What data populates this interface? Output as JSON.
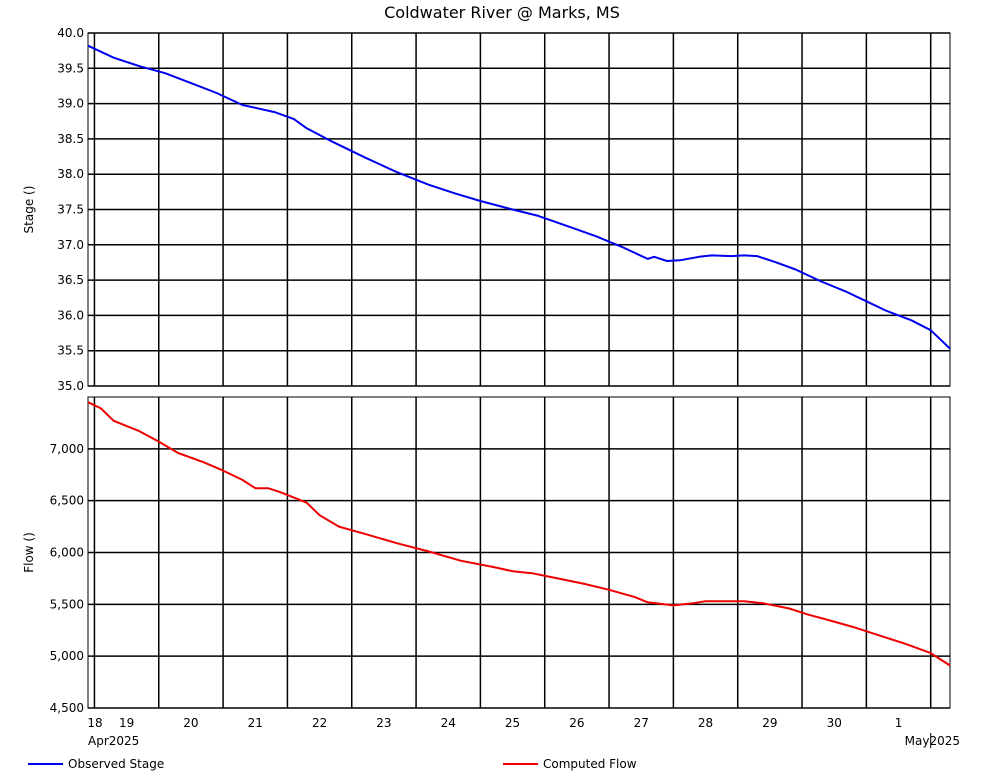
{
  "chart_data": {
    "title": "Coldwater River @ Marks, MS",
    "x_day_labels": [
      "18",
      "19",
      "20",
      "21",
      "22",
      "23",
      "24",
      "25",
      "26",
      "27",
      "28",
      "29",
      "30",
      "1"
    ],
    "x_month_labels": [
      "Apr2025",
      "May2025"
    ],
    "x_range_days": [
      -0.1,
      13.3
    ],
    "panels": [
      {
        "name": "stage",
        "type": "line",
        "ylabel": "Stage ()",
        "ylim": [
          35.0,
          40.0
        ],
        "yticks": [
          35.0,
          35.5,
          36.0,
          36.5,
          37.0,
          37.5,
          38.0,
          38.5,
          39.0,
          39.5,
          40.0
        ],
        "ytick_labels": [
          "35.0",
          "35.5",
          "36.0",
          "36.5",
          "37.0",
          "37.5",
          "38.0",
          "38.5",
          "39.0",
          "39.5",
          "40.0"
        ],
        "series": [
          {
            "name": "Observed Stage",
            "color": "#0000ee",
            "points": [
              [
                -0.1,
                39.82
              ],
              [
                0.3,
                39.65
              ],
              [
                0.7,
                39.53
              ],
              [
                1.1,
                39.43
              ],
              [
                1.5,
                39.29
              ],
              [
                1.9,
                39.15
              ],
              [
                2.3,
                38.98
              ],
              [
                2.5,
                38.94
              ],
              [
                2.8,
                38.88
              ],
              [
                3.1,
                38.78
              ],
              [
                3.3,
                38.65
              ],
              [
                3.7,
                38.46
              ],
              [
                4.2,
                38.24
              ],
              [
                4.7,
                38.03
              ],
              [
                5.2,
                37.85
              ],
              [
                5.6,
                37.73
              ],
              [
                6.0,
                37.62
              ],
              [
                6.5,
                37.5
              ],
              [
                6.9,
                37.41
              ],
              [
                7.4,
                37.25
              ],
              [
                7.8,
                37.12
              ],
              [
                8.2,
                36.97
              ],
              [
                8.6,
                36.8
              ],
              [
                8.7,
                36.83
              ],
              [
                8.9,
                36.77
              ],
              [
                9.1,
                36.78
              ],
              [
                9.4,
                36.83
              ],
              [
                9.6,
                36.85
              ],
              [
                9.9,
                36.84
              ],
              [
                10.1,
                36.85
              ],
              [
                10.3,
                36.84
              ],
              [
                10.6,
                36.75
              ],
              [
                10.9,
                36.65
              ],
              [
                11.3,
                36.48
              ],
              [
                11.7,
                36.33
              ],
              [
                12.0,
                36.2
              ],
              [
                12.3,
                36.07
              ],
              [
                12.7,
                35.93
              ],
              [
                13.0,
                35.79
              ],
              [
                13.3,
                35.53
              ]
            ]
          }
        ]
      },
      {
        "name": "flow",
        "type": "line",
        "ylabel": "Flow ()",
        "ylim": [
          4500,
          7500
        ],
        "yticks": [
          4500,
          5000,
          5500,
          6000,
          6500,
          7000
        ],
        "ytick_labels": [
          "4,500",
          "5,000",
          "5,500",
          "6,000",
          "6,500",
          "7,000"
        ],
        "series": [
          {
            "name": "Computed Flow",
            "color": "#ee0000",
            "points": [
              [
                -0.1,
                7450
              ],
              [
                0.1,
                7390
              ],
              [
                0.3,
                7270
              ],
              [
                0.7,
                7170
              ],
              [
                1.0,
                7070
              ],
              [
                1.3,
                6960
              ],
              [
                1.7,
                6870
              ],
              [
                2.0,
                6790
              ],
              [
                2.3,
                6700
              ],
              [
                2.5,
                6620
              ],
              [
                2.7,
                6620
              ],
              [
                2.9,
                6580
              ],
              [
                3.1,
                6530
              ],
              [
                3.3,
                6480
              ],
              [
                3.5,
                6360
              ],
              [
                3.8,
                6250
              ],
              [
                4.2,
                6180
              ],
              [
                4.7,
                6090
              ],
              [
                5.2,
                6010
              ],
              [
                5.7,
                5920
              ],
              [
                6.2,
                5860
              ],
              [
                6.5,
                5820
              ],
              [
                6.8,
                5800
              ],
              [
                7.2,
                5750
              ],
              [
                7.6,
                5700
              ],
              [
                8.0,
                5640
              ],
              [
                8.4,
                5570
              ],
              [
                8.6,
                5520
              ],
              [
                9.0,
                5490
              ],
              [
                9.3,
                5510
              ],
              [
                9.5,
                5530
              ],
              [
                9.8,
                5530
              ],
              [
                10.1,
                5530
              ],
              [
                10.4,
                5510
              ],
              [
                10.8,
                5460
              ],
              [
                11.1,
                5400
              ],
              [
                11.4,
                5350
              ],
              [
                11.8,
                5280
              ],
              [
                12.2,
                5200
              ],
              [
                12.6,
                5120
              ],
              [
                13.0,
                5030
              ],
              [
                13.3,
                4910
              ]
            ]
          }
        ]
      }
    ],
    "legend": [
      {
        "name": "Observed Stage",
        "color": "#0000ee"
      },
      {
        "name": "Computed Flow",
        "color": "#ee0000"
      }
    ],
    "legend_placement": "bottom",
    "grid": true
  }
}
